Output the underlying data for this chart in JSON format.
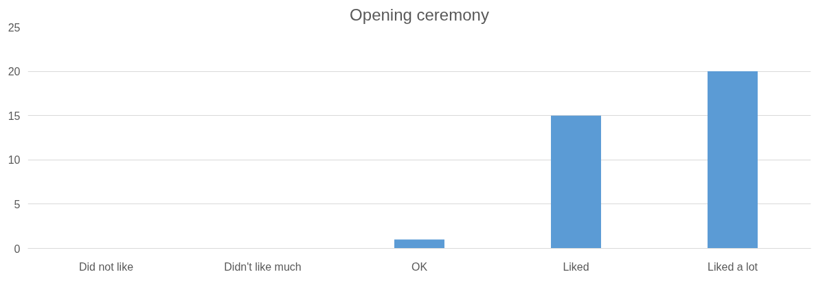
{
  "chart_data": {
    "type": "bar",
    "title": "Opening ceremony",
    "categories": [
      "Did not like",
      "Didn't like much",
      "OK",
      "Liked",
      "Liked a lot"
    ],
    "values": [
      0,
      0,
      1,
      15,
      20
    ],
    "color": "#5b9bd5",
    "ylim": [
      0,
      25
    ],
    "yticks": [
      0,
      5,
      10,
      15,
      20,
      25
    ],
    "grid": "y"
  }
}
